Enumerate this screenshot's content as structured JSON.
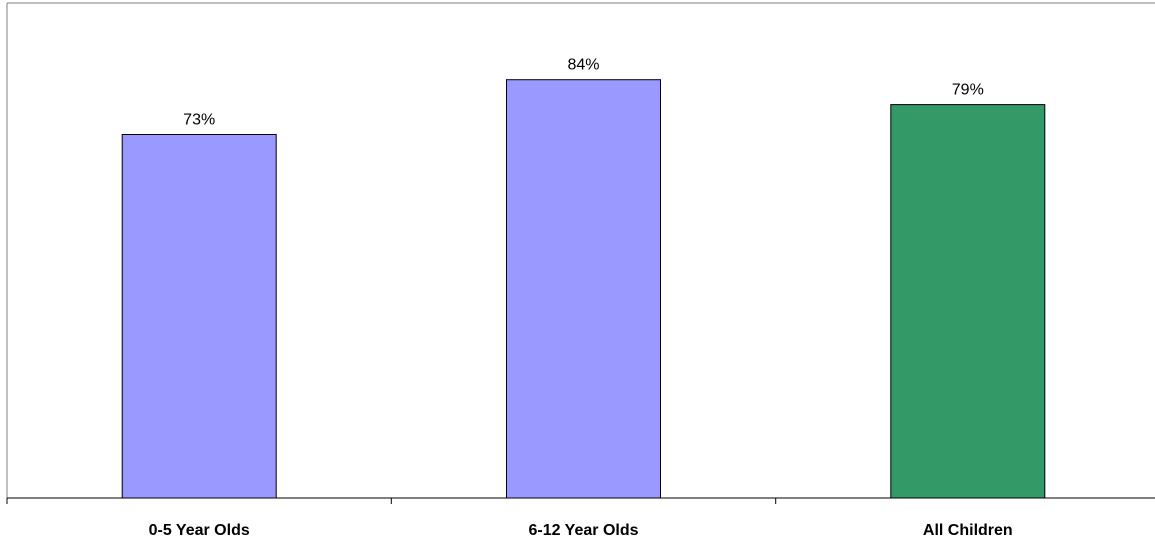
{
  "chart_data": {
    "type": "bar",
    "categories": [
      "0-5 Year Olds",
      "6-12 Year Olds",
      "All Children"
    ],
    "values": [
      73,
      84,
      79
    ],
    "value_labels": [
      "73%",
      "84%",
      "79%"
    ],
    "colors": [
      "#9999ff",
      "#9999ff",
      "#339966"
    ],
    "ylim": [
      0,
      100
    ],
    "grid": false,
    "title": "",
    "xlabel": "",
    "ylabel": ""
  }
}
